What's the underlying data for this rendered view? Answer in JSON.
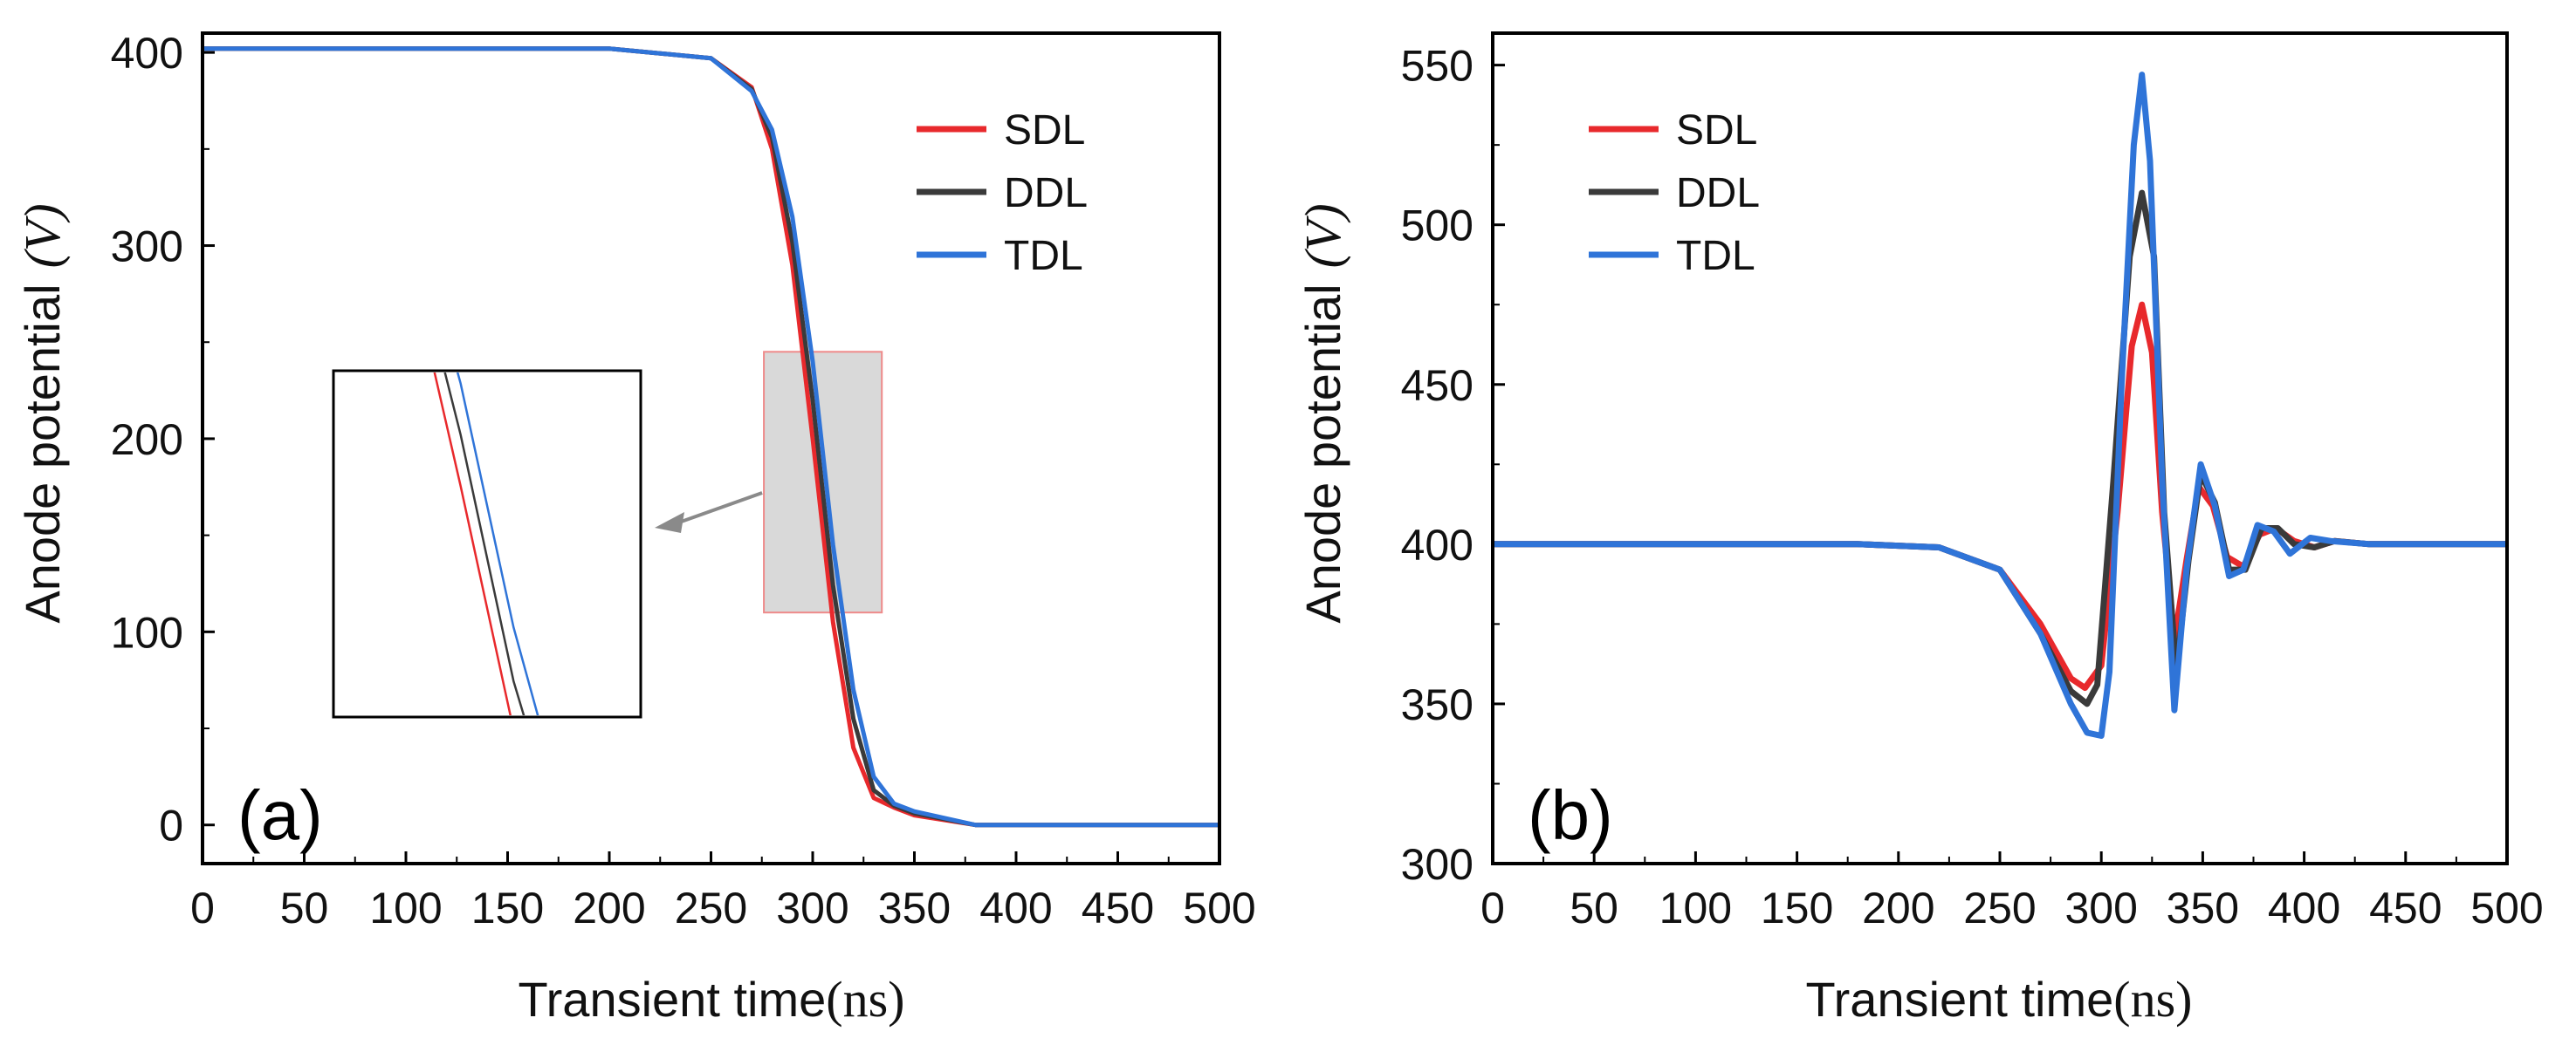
{
  "colors": {
    "SDL": "#e8292c",
    "DDL": "#3a3a3a",
    "TDL": "#2f74d8",
    "inset_fill": "#d9d9d9",
    "inset_border": "#ee8a8a",
    "arrow": "#8a8a8a"
  },
  "chart_data": [
    {
      "type": "line",
      "panel_label": "(a)",
      "xlabel_text": "Transient time",
      "xlabel_unit": "(ns)",
      "ylabel_text": "Anode potential",
      "ylabel_unit": "(V)",
      "xlim": [
        0,
        500
      ],
      "ylim": [
        -20,
        410
      ],
      "xticks": [
        0,
        50,
        100,
        150,
        200,
        250,
        300,
        350,
        400,
        450,
        500
      ],
      "yticks": [
        0,
        100,
        200,
        300,
        400
      ],
      "legend_position": "top-right",
      "series": [
        {
          "name": "SDL",
          "x": [
            0,
            100,
            200,
            250,
            270,
            280,
            290,
            300,
            310,
            320,
            330,
            340,
            350,
            380,
            400,
            500
          ],
          "y": [
            402,
            402,
            402,
            397,
            382,
            350,
            290,
            200,
            105,
            40,
            14,
            9,
            5,
            0,
            0,
            0
          ]
        },
        {
          "name": "DDL",
          "x": [
            0,
            100,
            200,
            250,
            270,
            280,
            290,
            300,
            310,
            320,
            330,
            340,
            350,
            380,
            400,
            500
          ],
          "y": [
            402,
            402,
            402,
            397,
            381,
            356,
            302,
            220,
            124,
            55,
            18,
            10,
            6,
            0,
            0,
            0
          ]
        },
        {
          "name": "TDL",
          "x": [
            0,
            100,
            200,
            250,
            270,
            280,
            290,
            300,
            310,
            320,
            330,
            340,
            350,
            380,
            400,
            500
          ],
          "y": [
            402,
            402,
            402,
            397,
            380,
            360,
            315,
            240,
            145,
            70,
            25,
            11,
            7,
            0,
            0,
            0
          ]
        }
      ],
      "inset": {
        "source_x": [
          276,
          334
        ],
        "source_y": [
          110,
          245
        ]
      }
    },
    {
      "type": "line",
      "panel_label": "(b)",
      "xlabel_text": "Transient time",
      "xlabel_unit": "(ns)",
      "ylabel_text": "Anode potential",
      "ylabel_unit": "(V)",
      "xlim": [
        0,
        500
      ],
      "ylim": [
        300,
        560
      ],
      "xticks": [
        0,
        50,
        100,
        150,
        200,
        250,
        300,
        350,
        400,
        450,
        500
      ],
      "yticks": [
        300,
        350,
        400,
        450,
        500,
        550
      ],
      "legend_position": "top-left",
      "series": [
        {
          "name": "SDL",
          "x": [
            0,
            100,
            180,
            220,
            250,
            270,
            285,
            292,
            300,
            308,
            315,
            320,
            325,
            330,
            336,
            342,
            348,
            355,
            362,
            370,
            378,
            386,
            395,
            405,
            415,
            432,
            500
          ],
          "y": [
            400,
            400,
            400,
            399,
            392,
            375,
            358,
            355,
            362,
            410,
            462,
            475,
            460,
            410,
            370,
            395,
            418,
            412,
            396,
            393,
            403,
            405,
            401,
            399,
            401,
            400,
            400
          ]
        },
        {
          "name": "DDL",
          "x": [
            0,
            100,
            180,
            220,
            250,
            270,
            285,
            293,
            298,
            306,
            314,
            320,
            326,
            331,
            337,
            343,
            349,
            356,
            363,
            371,
            379,
            387,
            395,
            405,
            415,
            432,
            500
          ],
          "y": [
            400,
            400,
            400,
            399,
            392,
            372,
            354,
            350,
            356,
            420,
            490,
            510,
            490,
            410,
            360,
            395,
            422,
            413,
            392,
            392,
            405,
            405,
            400,
            399,
            401,
            400,
            400
          ]
        },
        {
          "name": "TDL",
          "x": [
            0,
            100,
            180,
            220,
            250,
            270,
            285,
            293,
            300,
            304,
            310,
            316,
            320,
            324,
            330,
            336,
            342,
            349,
            356,
            363,
            370,
            377,
            385,
            393,
            403,
            413,
            432,
            500
          ],
          "y": [
            400,
            400,
            400,
            399,
            392,
            372,
            350,
            341,
            340,
            360,
            450,
            525,
            547,
            520,
            420,
            348,
            392,
            425,
            412,
            390,
            392,
            406,
            404,
            397,
            402,
            401,
            400,
            400
          ]
        }
      ]
    }
  ]
}
